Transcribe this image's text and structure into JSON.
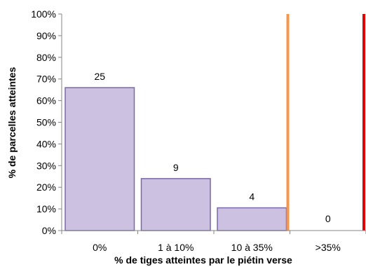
{
  "chart_data": {
    "type": "bar",
    "categories": [
      "0%",
      "1 à 10%",
      "10 à 35%",
      ">35%"
    ],
    "values": [
      66,
      24,
      10.5,
      0
    ],
    "data_labels": [
      "25",
      "9",
      "4",
      "0"
    ],
    "xlabel": "% de tiges atteintes par le piétin verse",
    "ylabel": "% de parcelles atteintes",
    "ylim": [
      0,
      100
    ],
    "yticks": [
      "0%",
      "10%",
      "20%",
      "30%",
      "40%",
      "50%",
      "60%",
      "70%",
      "80%",
      "90%",
      "100%"
    ],
    "grid": false,
    "legend": "none",
    "threshold_lines": [
      {
        "between": [
          2,
          3
        ],
        "color": "#f79646"
      },
      {
        "between": [
          3,
          4
        ],
        "color": "#e00000"
      }
    ],
    "colors": {
      "bar_fill": "#ccc1e0",
      "bar_stroke": "#7b68a8",
      "axis": "#868686"
    }
  }
}
